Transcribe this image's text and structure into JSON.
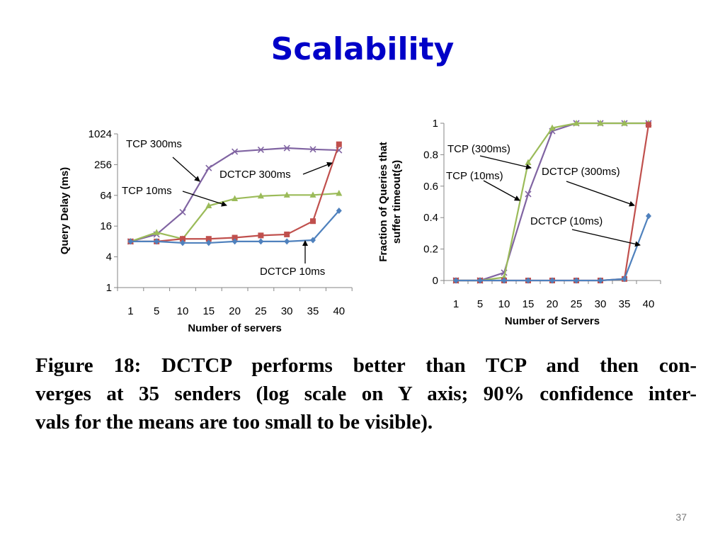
{
  "slide": {
    "title": "Scalability",
    "caption_lines": [
      "Figure 18: DCTCP performs better than TCP and then con-",
      "verges at 35 senders (log scale on Y axis; 90% confidence inter-",
      "vals for the means are too small to be visible)."
    ],
    "page_number": "37"
  },
  "colors": {
    "title": "#0000c8",
    "tcp_300ms": "#8064a2",
    "tcp_10ms": "#9bbb59",
    "dctcp_300ms": "#c0504d",
    "dctcp_10ms": "#4f81bd"
  },
  "chart_data": [
    {
      "type": "line",
      "scale_y": "log2",
      "ylabel": "Query Delay (ms)",
      "xlabel": "Number of servers",
      "x": [
        "1",
        "5",
        "10",
        "15",
        "20",
        "25",
        "30",
        "35",
        "40"
      ],
      "y_ticks": [
        "1",
        "4",
        "16",
        "64",
        "256",
        "1024"
      ],
      "ylim": [
        1,
        1024
      ],
      "grid": false,
      "series": [
        {
          "name": "TCP 300ms",
          "color_key": "tcp_300ms",
          "marker": "x",
          "values": [
            8,
            11,
            30,
            220,
            460,
            500,
            540,
            510,
            490
          ]
        },
        {
          "name": "TCP 10ms",
          "color_key": "tcp_10ms",
          "marker": "triangle",
          "values": [
            8,
            12,
            9,
            40,
            55,
            62,
            65,
            65,
            70
          ]
        },
        {
          "name": "DCTCP 300ms",
          "color_key": "dctcp_300ms",
          "marker": "square",
          "values": [
            8,
            8,
            9,
            9,
            9.5,
            10.5,
            11,
            20,
            640
          ]
        },
        {
          "name": "DCTCP 10ms",
          "color_key": "dctcp_10ms",
          "marker": "diamond",
          "values": [
            8,
            8,
            7.5,
            7.5,
            8,
            8,
            8,
            8.5,
            32
          ]
        }
      ],
      "annotations": [
        "TCP 300ms",
        "DCTCP 300ms",
        "TCP 10ms",
        "DCTCP 10ms"
      ]
    },
    {
      "type": "line",
      "ylabel": "Fraction of Queries that suffer timeout(s)",
      "ylabel_lines": [
        "Fraction of Queries that",
        "suffer timeout(s)"
      ],
      "xlabel": "Number of Servers",
      "x": [
        "1",
        "5",
        "10",
        "15",
        "20",
        "25",
        "30",
        "35",
        "40"
      ],
      "y_ticks": [
        "0",
        "0.2",
        "0.4",
        "0.6",
        "0.8",
        "1"
      ],
      "ylim": [
        0,
        1
      ],
      "grid": false,
      "series": [
        {
          "name": "TCP (300ms)",
          "color_key": "tcp_300ms",
          "marker": "x",
          "values": [
            0,
            0,
            0.05,
            0.55,
            0.95,
            1.0,
            1.0,
            1.0,
            1.0
          ]
        },
        {
          "name": "TCP (10ms)",
          "color_key": "tcp_10ms",
          "marker": "triangle",
          "values": [
            0,
            0,
            0.02,
            0.75,
            0.97,
            1.0,
            1.0,
            1.0,
            1.0
          ]
        },
        {
          "name": "DCTCP (300ms)",
          "color_key": "dctcp_300ms",
          "marker": "square",
          "values": [
            0,
            0,
            0,
            0,
            0,
            0,
            0,
            0.01,
            0.99
          ]
        },
        {
          "name": "DCTCP (10ms)",
          "color_key": "dctcp_10ms",
          "marker": "diamond",
          "values": [
            0,
            0,
            0,
            0,
            0,
            0,
            0,
            0.01,
            0.41
          ]
        }
      ],
      "annotations": [
        "TCP (300ms)",
        "TCP (10ms)",
        "DCTCP (300ms)",
        "DCTCP (10ms)"
      ]
    }
  ]
}
